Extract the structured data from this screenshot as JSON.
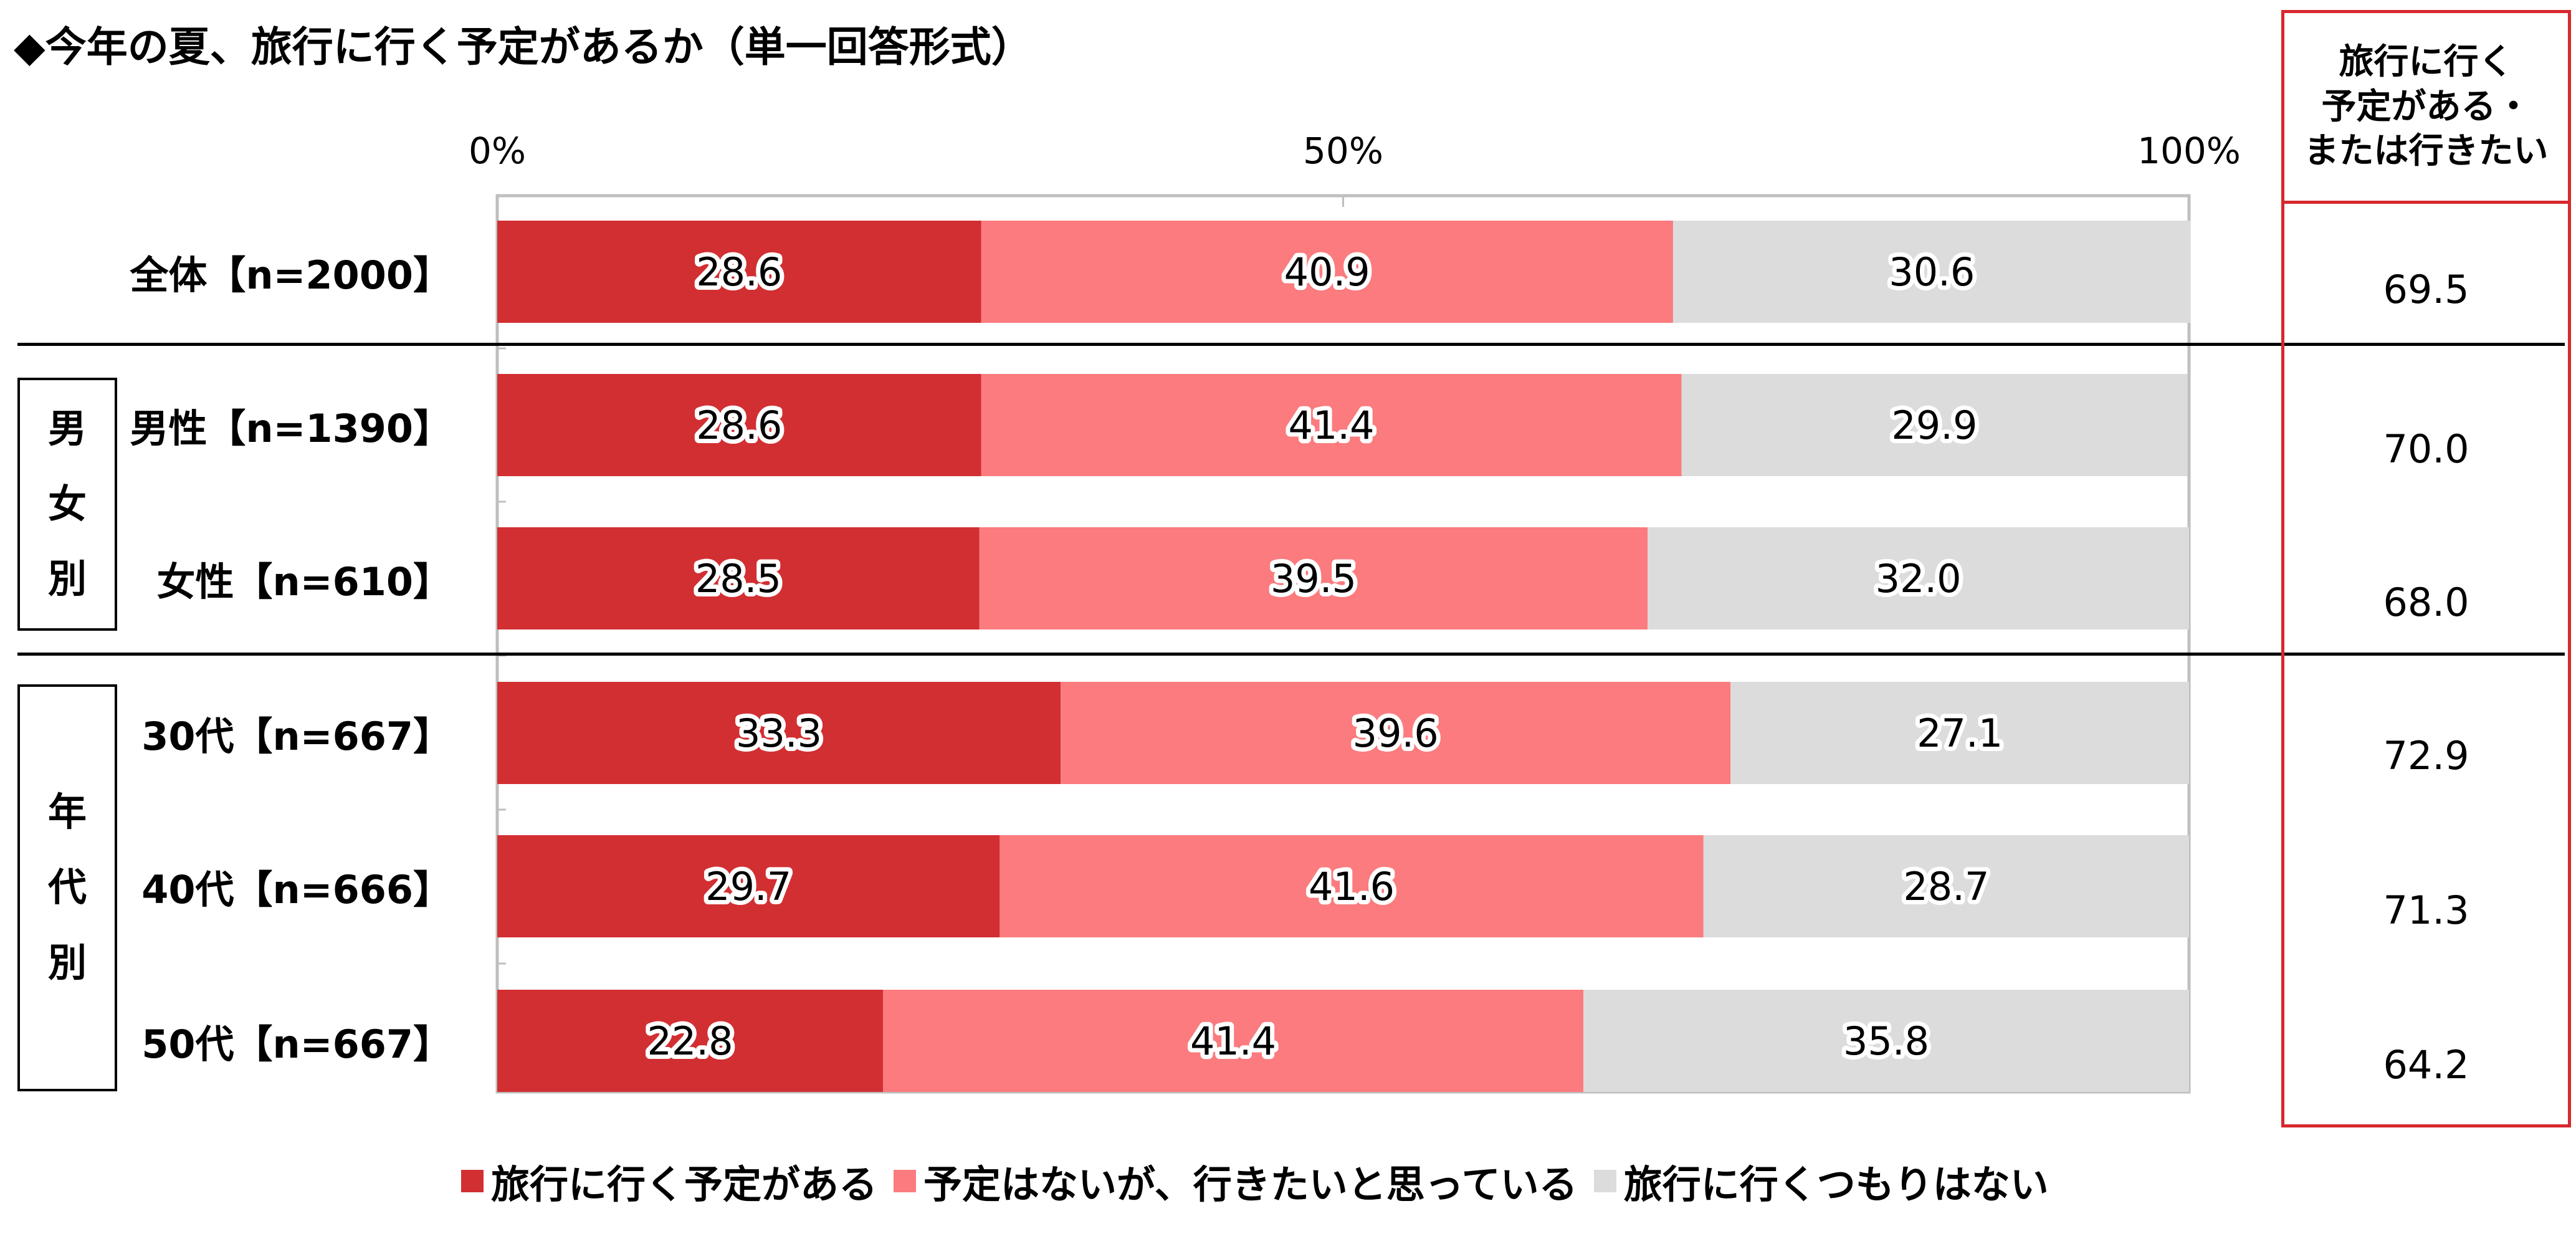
{
  "title": "◆今年の夏、旅行に行く予定があるか（単一回答形式）",
  "colors": {
    "series": [
      "#d22f32",
      "#fb7b7e",
      "#dcdcdc"
    ],
    "panel_border": "#d7282d",
    "axis": "#bfbfbf"
  },
  "groups": {
    "gender": [
      "男",
      "女",
      "別"
    ],
    "age": [
      "年",
      "代",
      "別"
    ]
  },
  "side_panel": {
    "header_lines": [
      "旅行に行く",
      "予定がある・",
      "または行きたい"
    ],
    "values": [
      "69.5",
      "70.0",
      "68.0",
      "72.9",
      "71.3",
      "64.2"
    ]
  },
  "chart_data": {
    "type": "bar",
    "orientation": "horizontal",
    "stacked": true,
    "percent_stacked": true,
    "categories": [
      "全体【n=2000】",
      "男性【n=1390】",
      "女性【n=610】",
      "30代【n=667】",
      "40代【n=666】",
      "50代【n=667】"
    ],
    "series": [
      {
        "name": "旅行に行く予定がある",
        "values": [
          28.6,
          28.6,
          28.5,
          33.3,
          29.7,
          22.8
        ]
      },
      {
        "name": "予定はないが、行きたいと思っている",
        "values": [
          40.9,
          41.4,
          39.5,
          39.6,
          41.6,
          41.4
        ]
      },
      {
        "name": "旅行に行くつもりはない",
        "values": [
          30.6,
          29.9,
          32.0,
          27.1,
          28.7,
          35.8
        ]
      }
    ],
    "value_labels": [
      [
        "28.6",
        "40.9",
        "30.6"
      ],
      [
        "28.6",
        "41.4",
        "29.9"
      ],
      [
        "28.5",
        "39.5",
        "32.0"
      ],
      [
        "33.3",
        "39.6",
        "27.1"
      ],
      [
        "29.7",
        "41.6",
        "28.7"
      ],
      [
        "22.8",
        "41.4",
        "35.8"
      ]
    ],
    "x_ticks": [
      "0%",
      "50%",
      "100%"
    ],
    "xlim": [
      0,
      100
    ],
    "legend_position": "bottom",
    "grid": false
  }
}
